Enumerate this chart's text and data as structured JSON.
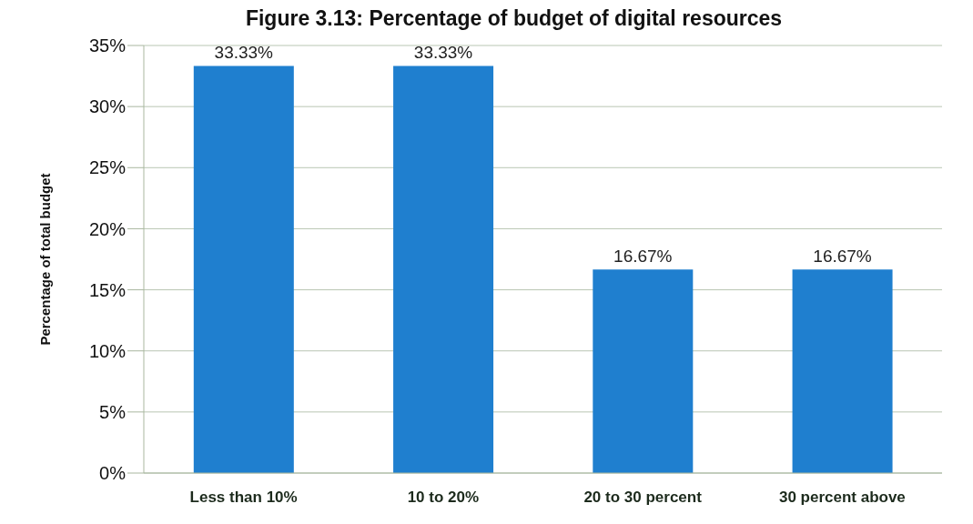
{
  "chart_data": {
    "type": "bar",
    "title": "Figure 3.13: Percentage of budget of digital resources",
    "ylabel": "Percentage of total budget",
    "categories": [
      "Less than 10%",
      "10 to 20%",
      "20 to 30 percent",
      "30 percent above"
    ],
    "values": [
      33.33,
      33.33,
      16.67,
      16.67
    ],
    "value_labels": [
      "33.33%",
      "33.33%",
      "16.67%",
      "16.67%"
    ],
    "color": "#1f7fcf",
    "ylim": [
      0,
      35
    ],
    "yticks": [
      {
        "value": 0,
        "label": "0%"
      },
      {
        "value": 5,
        "label": "5%"
      },
      {
        "value": 10,
        "label": "10%"
      },
      {
        "value": 15,
        "label": "15%"
      },
      {
        "value": 20,
        "label": "20%"
      },
      {
        "value": 25,
        "label": "25%"
      },
      {
        "value": 30,
        "label": "30%"
      },
      {
        "value": 35,
        "label": "35%"
      }
    ],
    "grid": "y"
  }
}
